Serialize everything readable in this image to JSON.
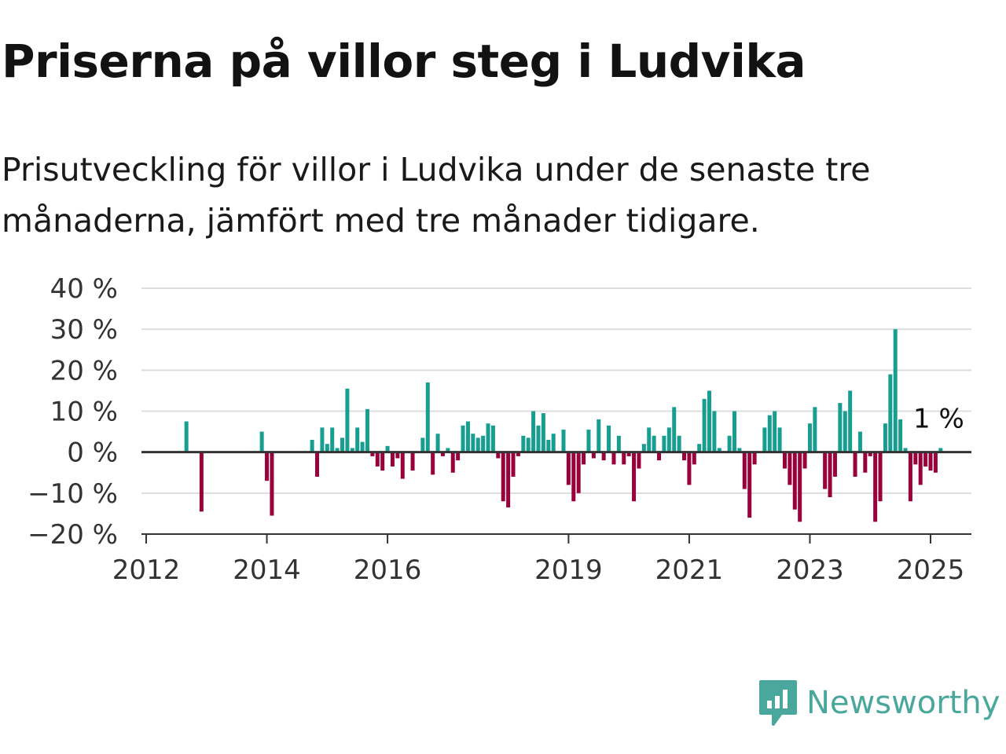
{
  "header": {
    "title": "Priserna på villor steg i Ludvika",
    "subtitle": "Prisutveckling för villor i Ludvika under de senaste tre månaderna, jämfört med tre månader tidigare."
  },
  "colors": {
    "positive": "#179e91",
    "negative": "#99003b",
    "grid": "#dddddd",
    "axis": "#333333",
    "brand": "#4aa79c"
  },
  "chart_data": {
    "type": "bar",
    "x_ticks": [
      "2012",
      "2014",
      "2016",
      "2019",
      "2021",
      "2023",
      "2025"
    ],
    "y_ticks": [
      "40 %",
      "30 %",
      "20 %",
      "10 %",
      "0 %",
      "−10 %",
      "−20 %"
    ],
    "ylim": [
      -20,
      40
    ],
    "annotation": "1 %",
    "values": [
      [
        "2012-09",
        7.5
      ],
      [
        "2012-12",
        -14.5
      ],
      [
        "2013-12",
        5
      ],
      [
        "2014-01",
        -7
      ],
      [
        "2014-02",
        -15.5
      ],
      [
        "2014-10",
        3
      ],
      [
        "2014-11",
        -6
      ],
      [
        "2014-12",
        6
      ],
      [
        "2015-01",
        2
      ],
      [
        "2015-02",
        6
      ],
      [
        "2015-03",
        1
      ],
      [
        "2015-04",
        3.5
      ],
      [
        "2015-05",
        15.5
      ],
      [
        "2015-06",
        1
      ],
      [
        "2015-07",
        6
      ],
      [
        "2015-08",
        2.5
      ],
      [
        "2015-09",
        10.5
      ],
      [
        "2015-10",
        -1
      ],
      [
        "2015-11",
        -3.5
      ],
      [
        "2015-12",
        -4.5
      ],
      [
        "2016-01",
        1.5
      ],
      [
        "2016-02",
        -3.5
      ],
      [
        "2016-03",
        -1.5
      ],
      [
        "2016-04",
        -6.5
      ],
      [
        "2016-06",
        -4.5
      ],
      [
        "2016-08",
        3.5
      ],
      [
        "2016-09",
        17
      ],
      [
        "2016-10",
        -5.5
      ],
      [
        "2016-11",
        4.5
      ],
      [
        "2016-12",
        -1
      ],
      [
        "2017-01",
        1
      ],
      [
        "2017-02",
        -5
      ],
      [
        "2017-03",
        -2
      ],
      [
        "2017-04",
        6.5
      ],
      [
        "2017-05",
        7.5
      ],
      [
        "2017-06",
        4.5
      ],
      [
        "2017-07",
        3.5
      ],
      [
        "2017-08",
        4
      ],
      [
        "2017-09",
        7
      ],
      [
        "2017-10",
        6.5
      ],
      [
        "2017-11",
        -1.5
      ],
      [
        "2017-12",
        -12
      ],
      [
        "2018-01",
        -13.5
      ],
      [
        "2018-02",
        -6
      ],
      [
        "2018-03",
        -1
      ],
      [
        "2018-04",
        4
      ],
      [
        "2018-05",
        3.5
      ],
      [
        "2018-06",
        10
      ],
      [
        "2018-07",
        6.5
      ],
      [
        "2018-08",
        9.5
      ],
      [
        "2018-09",
        3
      ],
      [
        "2018-10",
        4.5
      ],
      [
        "2018-12",
        5.5
      ],
      [
        "2019-01",
        -8
      ],
      [
        "2019-02",
        -12
      ],
      [
        "2019-03",
        -10
      ],
      [
        "2019-04",
        -3
      ],
      [
        "2019-05",
        5.5
      ],
      [
        "2019-06",
        -1.5
      ],
      [
        "2019-07",
        8
      ],
      [
        "2019-08",
        -2
      ],
      [
        "2019-09",
        6.5
      ],
      [
        "2019-10",
        -3
      ],
      [
        "2019-11",
        4
      ],
      [
        "2019-12",
        -3
      ],
      [
        "2020-01",
        -1
      ],
      [
        "2020-02",
        -12
      ],
      [
        "2020-03",
        -4
      ],
      [
        "2020-04",
        2
      ],
      [
        "2020-05",
        6
      ],
      [
        "2020-06",
        4
      ],
      [
        "2020-07",
        -2
      ],
      [
        "2020-08",
        4
      ],
      [
        "2020-09",
        6
      ],
      [
        "2020-10",
        11
      ],
      [
        "2020-11",
        4
      ],
      [
        "2020-12",
        -2
      ],
      [
        "2021-01",
        -8
      ],
      [
        "2021-02",
        -3
      ],
      [
        "2021-03",
        2
      ],
      [
        "2021-04",
        13
      ],
      [
        "2021-05",
        15
      ],
      [
        "2021-06",
        10
      ],
      [
        "2021-07",
        1
      ],
      [
        "2021-09",
        4
      ],
      [
        "2021-10",
        10
      ],
      [
        "2021-11",
        1
      ],
      [
        "2021-12",
        -9
      ],
      [
        "2022-01",
        -16
      ],
      [
        "2022-02",
        -3
      ],
      [
        "2022-04",
        6
      ],
      [
        "2022-05",
        9
      ],
      [
        "2022-06",
        10
      ],
      [
        "2022-07",
        6
      ],
      [
        "2022-08",
        -4
      ],
      [
        "2022-09",
        -8
      ],
      [
        "2022-10",
        -14
      ],
      [
        "2022-11",
        -17
      ],
      [
        "2022-12",
        -4
      ],
      [
        "2023-01",
        7
      ],
      [
        "2023-02",
        11
      ],
      [
        "2023-04",
        -9
      ],
      [
        "2023-05",
        -11
      ],
      [
        "2023-06",
        -6
      ],
      [
        "2023-07",
        12
      ],
      [
        "2023-08",
        10
      ],
      [
        "2023-09",
        15
      ],
      [
        "2023-10",
        -6
      ],
      [
        "2023-11",
        5
      ],
      [
        "2023-12",
        -5
      ],
      [
        "2024-01",
        -1
      ],
      [
        "2024-02",
        -17
      ],
      [
        "2024-03",
        -12
      ],
      [
        "2024-04",
        7
      ],
      [
        "2024-05",
        19
      ],
      [
        "2024-06",
        30
      ],
      [
        "2024-07",
        8
      ],
      [
        "2024-08",
        1
      ],
      [
        "2024-09",
        -12
      ],
      [
        "2024-10",
        -3
      ],
      [
        "2024-11",
        -8
      ],
      [
        "2024-12",
        -3.5
      ],
      [
        "2025-01",
        -4.5
      ],
      [
        "2025-02",
        -5
      ],
      [
        "2025-03",
        1
      ]
    ]
  },
  "brand": {
    "name": "Newsworthy",
    "icon": "newsworthy-logo-icon"
  }
}
